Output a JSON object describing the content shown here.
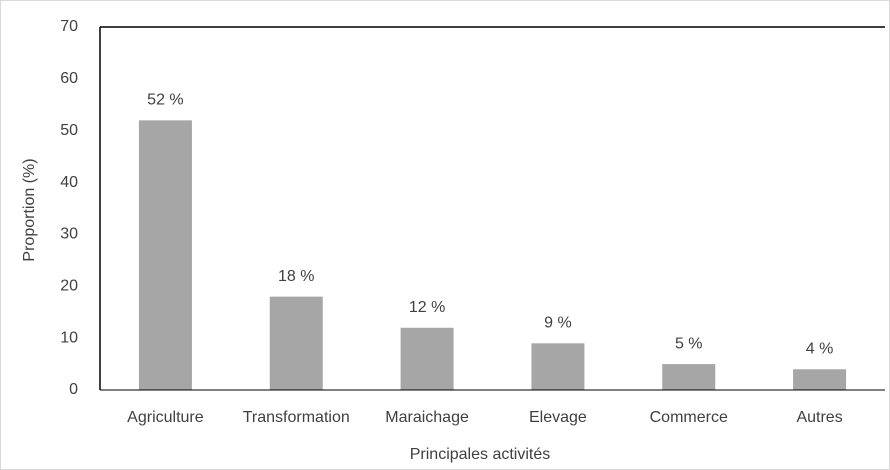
{
  "chart_data": {
    "type": "bar",
    "ylabel": "Proportion (%)",
    "xlabel": "Principales activités",
    "categories": [
      "Agriculture",
      "Transformation",
      "Maraichage",
      "Elevage",
      "Commerce",
      "Autres"
    ],
    "values": [
      52,
      18,
      12,
      9,
      5,
      4
    ],
    "value_labels": [
      "52 %",
      "18 %",
      "12 %",
      "9 %",
      "5 %",
      "4 %"
    ],
    "color": "#a6a6a6",
    "ylim": [
      0,
      70
    ],
    "yticks": [
      0,
      10,
      20,
      30,
      40,
      50,
      60,
      70
    ],
    "grid": false
  }
}
